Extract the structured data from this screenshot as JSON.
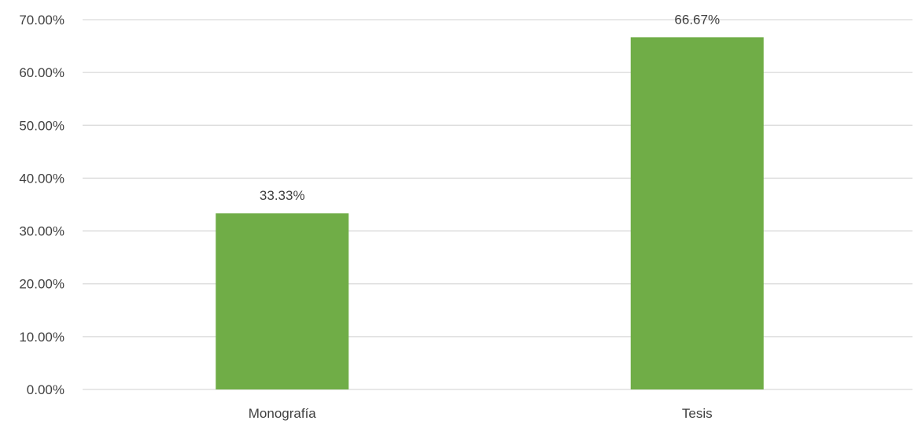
{
  "chart_data": {
    "type": "bar",
    "title": "",
    "xlabel": "",
    "ylabel": "",
    "categories": [
      "Monografía",
      "Tesis"
    ],
    "values": [
      33.33,
      66.67
    ],
    "value_labels": [
      "33.33%",
      "66.67%"
    ],
    "ylim": [
      0,
      70
    ],
    "yticks": [
      0,
      10,
      20,
      30,
      40,
      50,
      60,
      70
    ],
    "ytick_labels": [
      "0.00%",
      "10.00%",
      "20.00%",
      "30.00%",
      "40.00%",
      "50.00%",
      "60.00%",
      "70.00%"
    ],
    "grid": true,
    "legend": "none",
    "bar_color": "#70AD47",
    "grid_color": "#D9D9D9",
    "text_color": "#404040"
  }
}
